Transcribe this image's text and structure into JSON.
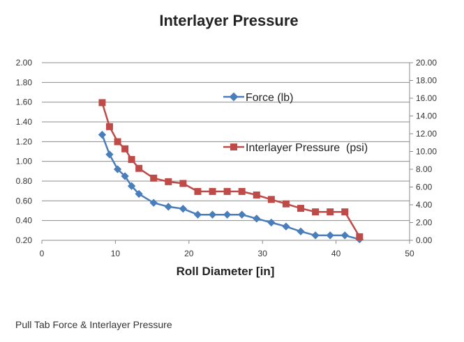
{
  "caption": "Pull Tab Force & Interlayer Pressure",
  "chart_data": {
    "type": "line",
    "title": "Interlayer Pressure",
    "xlabel": "Roll Diameter [in]",
    "ylabel": "",
    "y2label": "",
    "xlim": [
      0,
      50
    ],
    "ylim": [
      0.2,
      2.0
    ],
    "y2lim": [
      0.0,
      20.0
    ],
    "x_ticks": [
      "0",
      "10",
      "20",
      "30",
      "40",
      "50"
    ],
    "y_ticks": [
      "0.20",
      "0.40",
      "0.60",
      "0.80",
      "1.00",
      "1.20",
      "1.40",
      "1.60",
      "1.80",
      "2.00"
    ],
    "y2_ticks": [
      "0.00",
      "2.00",
      "4.00",
      "6.00",
      "8.00",
      "10.00",
      "12.00",
      "14.00",
      "16.00",
      "18.00",
      "20.00"
    ],
    "grid": true,
    "legend_position": "inside-top-center",
    "series": [
      {
        "name": "Force (lb)",
        "axis": "left",
        "color": "#4a7ebb",
        "marker": "diamond",
        "x": [
          8.2,
          9.2,
          10.3,
          11.3,
          12.2,
          13.2,
          15.2,
          17.2,
          19.2,
          21.2,
          23.2,
          25.2,
          27.2,
          29.2,
          31.2,
          33.2,
          35.2,
          37.2,
          39.2,
          41.2,
          43.2
        ],
        "values": [
          1.27,
          1.07,
          0.92,
          0.85,
          0.75,
          0.67,
          0.58,
          0.54,
          0.52,
          0.46,
          0.46,
          0.46,
          0.46,
          0.42,
          0.38,
          0.34,
          0.29,
          0.25,
          0.25,
          0.25,
          0.21
        ]
      },
      {
        "name": "Interlayer Pressure  (psi)",
        "axis": "right",
        "color": "#be4b48",
        "marker": "square",
        "x": [
          8.2,
          9.2,
          10.3,
          11.3,
          12.2,
          13.2,
          15.2,
          17.2,
          19.2,
          21.2,
          23.2,
          25.2,
          27.2,
          29.2,
          31.2,
          33.2,
          35.2,
          37.2,
          39.2,
          41.2,
          43.2
        ],
        "values": [
          15.5,
          12.8,
          11.1,
          10.3,
          9.1,
          8.1,
          7.0,
          6.6,
          6.4,
          5.5,
          5.5,
          5.5,
          5.5,
          5.1,
          4.6,
          4.1,
          3.6,
          3.2,
          3.2,
          3.2,
          0.4
        ]
      }
    ]
  }
}
